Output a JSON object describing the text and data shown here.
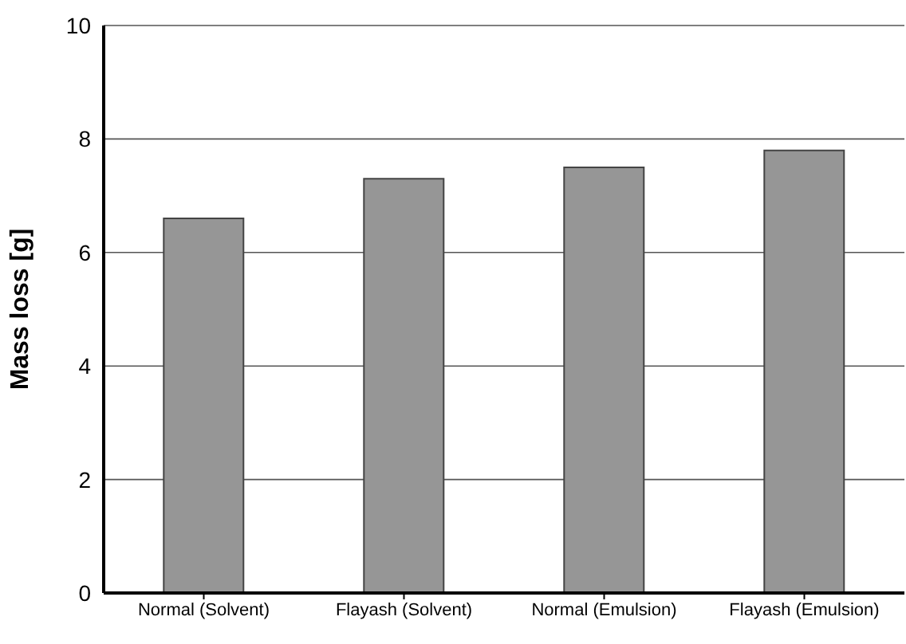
{
  "chart_data": {
    "type": "bar",
    "ylabel": "Mass loss [g]",
    "categories": [
      "Normal (Solvent)",
      "Flayash (Solvent)",
      "Normal (Emulsion)",
      "Flayash (Emulsion)"
    ],
    "values": [
      6.6,
      7.3,
      7.5,
      7.8
    ],
    "color": "#969696",
    "ylim": [
      0,
      10
    ],
    "yticks": [
      0,
      2,
      4,
      6,
      8,
      10
    ],
    "grid": "y",
    "legend": false
  }
}
